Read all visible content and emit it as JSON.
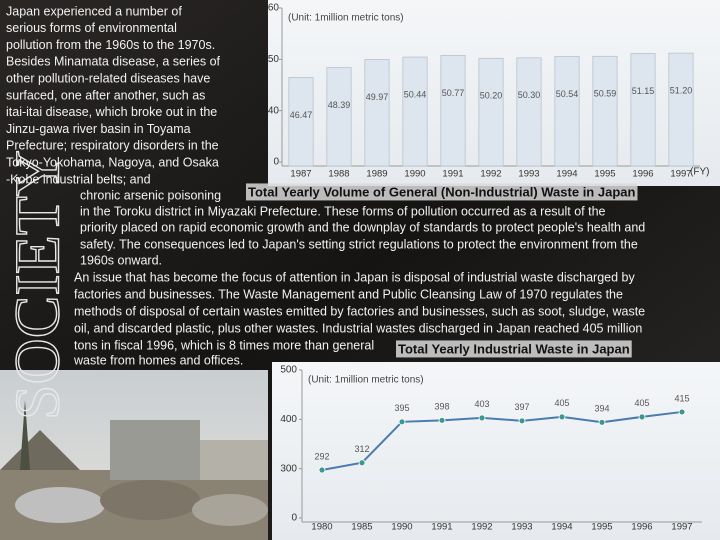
{
  "side_label": "SOCIETY",
  "text_lines": [
    "Japan experienced a number of",
    "serious forms of environmental",
    "pollution from the 1960s to the 1970s.",
    "Besides Minamata disease, a series of",
    "other pollution-related diseases have",
    "surfaced, one after another, such as",
    "itai-itai disease, which broke out in the",
    "Jinzu-gawa river basin in Toyama",
    "Prefecture; respiratory disorders in the",
    "Tokyo-Yokohama, Nagoya, and Osaka",
    "-Kobe industrial belts; and",
    "chronic arsenic poisoning",
    "in the Toroku district in Miyazaki Prefecture. These forms of pollution occurred as a result of the",
    "priority placed on rapid economic growth and the downplay of standards to protect people's health and",
    "safety. The consequences led to Japan's setting strict regulations to protect the environment from the",
    "1960s onward.",
    "An issue that has become the focus of attention in Japan is disposal of industrial waste discharged by",
    "factories and businesses. The Waste Management and Public Cleansing Law of 1970 regulates the",
    "methods of disposal of certain wastes emitted by factories and businesses, such as soot, sludge, waste",
    "oil, and discarded plastic, plus other wastes. Industrial wastes discharged in Japan reached 405 million",
    "tons in fiscal 1996, which is 8 times more than general",
    "waste from homes and offices."
  ],
  "chart_data": [
    {
      "type": "bar",
      "title": "Total Yearly Volume of General (Non-Industrial) Waste in Japan",
      "unit_label": "(Unit: 1million metric tons)",
      "x_label": "(FY)",
      "categories": [
        "1987",
        "1988",
        "1989",
        "1990",
        "1991",
        "1992",
        "1993",
        "1994",
        "1995",
        "1996",
        "1997"
      ],
      "values": [
        46.47,
        48.39,
        49.97,
        50.44,
        50.77,
        50.2,
        50.3,
        50.54,
        50.59,
        51.15,
        51.2
      ],
      "value_labels": [
        "46.47",
        "48.39",
        "49.97",
        "50.44",
        "50.77",
        "50.20",
        "50.30",
        "50.54",
        "50.59",
        "51.15",
        "51.20"
      ],
      "color": "#dde5ee",
      "ylim": [
        0,
        60
      ],
      "yticks": [
        0,
        40,
        50,
        60
      ],
      "axis_break": true
    },
    {
      "type": "line",
      "title": "Total Yearly Industrial Waste in Japan",
      "unit_label": "(Unit: 1million metric tons)",
      "categories": [
        "1980",
        "1985",
        "1990",
        "1991",
        "1992",
        "1993",
        "1994",
        "1995",
        "1996",
        "1997"
      ],
      "values": [
        292,
        312,
        395,
        398,
        403,
        397,
        405,
        394,
        405,
        415
      ],
      "color": "#4a7bb0",
      "ylim": [
        0,
        500
      ],
      "yticks": [
        0,
        300,
        400,
        500
      ],
      "axis_break": true
    }
  ]
}
